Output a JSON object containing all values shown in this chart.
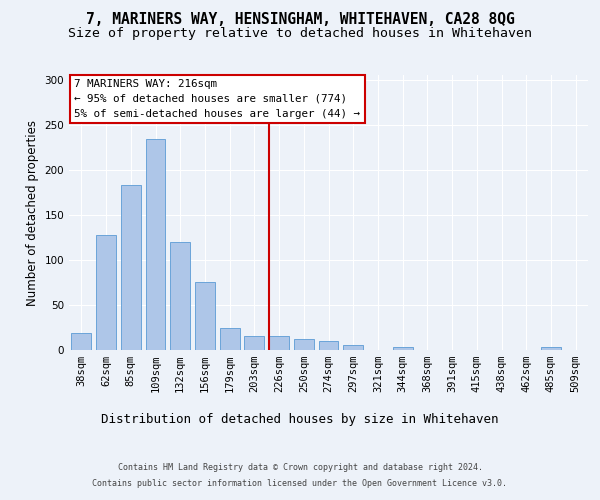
{
  "title": "7, MARINERS WAY, HENSINGHAM, WHITEHAVEN, CA28 8QG",
  "subtitle": "Size of property relative to detached houses in Whitehaven",
  "xlabel": "Distribution of detached houses by size in Whitehaven",
  "ylabel": "Number of detached properties",
  "footer_line1": "Contains HM Land Registry data © Crown copyright and database right 2024.",
  "footer_line2": "Contains public sector information licensed under the Open Government Licence v3.0.",
  "bin_labels": [
    "38sqm",
    "62sqm",
    "85sqm",
    "109sqm",
    "132sqm",
    "156sqm",
    "179sqm",
    "203sqm",
    "226sqm",
    "250sqm",
    "274sqm",
    "297sqm",
    "321sqm",
    "344sqm",
    "368sqm",
    "391sqm",
    "415sqm",
    "438sqm",
    "462sqm",
    "485sqm",
    "509sqm"
  ],
  "bar_heights": [
    19,
    128,
    183,
    234,
    120,
    75,
    24,
    15,
    15,
    12,
    10,
    5,
    0,
    3,
    0,
    0,
    0,
    0,
    0,
    3,
    0
  ],
  "bar_color": "#aec6e8",
  "bar_edge_color": "#5b9bd5",
  "bar_width": 0.8,
  "vline_x": 7.59,
  "vline_color": "#cc0000",
  "annotation_text": "7 MARINERS WAY: 216sqm\n← 95% of detached houses are smaller (774)\n5% of semi-detached houses are larger (44) →",
  "annotation_box_color": "#cc0000",
  "ylim": [
    0,
    305
  ],
  "yticks": [
    0,
    50,
    100,
    150,
    200,
    250,
    300
  ],
  "bg_color": "#edf2f9",
  "plot_bg_color": "#edf2f9",
  "grid_color": "#ffffff",
  "title_fontsize": 10.5,
  "subtitle_fontsize": 9.5,
  "ylabel_fontsize": 8.5,
  "xlabel_fontsize": 9,
  "tick_fontsize": 7.5,
  "footer_fontsize": 6,
  "annotation_fontsize": 7.8
}
